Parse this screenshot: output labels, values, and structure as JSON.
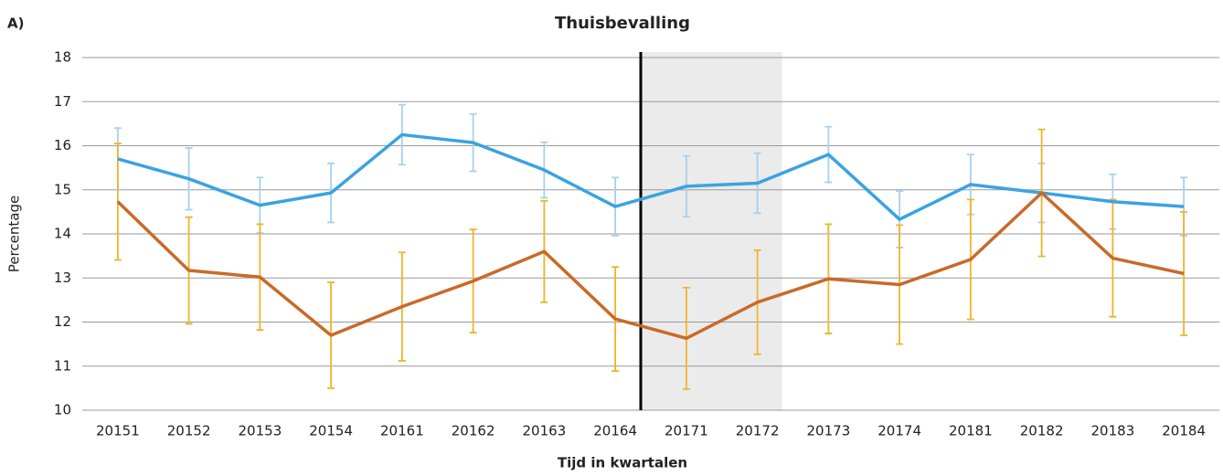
{
  "chart_data": {
    "type": "line",
    "panel_label": "A)",
    "title": "Thuisbevalling",
    "x_label": "Tijd in kwartalen",
    "y_label": "Percentage",
    "categories": [
      "20151",
      "20152",
      "20153",
      "20154",
      "20161",
      "20162",
      "20163",
      "20164",
      "20171",
      "20172",
      "20173",
      "20174",
      "20181",
      "20182",
      "20183",
      "20184"
    ],
    "ylim": [
      10,
      18
    ],
    "yticks": [
      10,
      11,
      12,
      13,
      14,
      15,
      16,
      17,
      18
    ],
    "grid": true,
    "series": [
      {
        "color": "#3aa3e0",
        "error_color": "#a9d0ee",
        "values": [
          15.7,
          15.25,
          14.65,
          14.93,
          16.25,
          16.07,
          15.45,
          14.62,
          15.08,
          15.15,
          15.8,
          14.33,
          15.12,
          14.93,
          14.73,
          14.62
        ],
        "errors": [
          0.7,
          0.7,
          0.63,
          0.67,
          0.68,
          0.65,
          0.63,
          0.66,
          0.69,
          0.68,
          0.63,
          0.64,
          0.68,
          0.67,
          0.62,
          0.66
        ]
      },
      {
        "color": "#c96a28",
        "error_color": "#f0b429",
        "values": [
          14.73,
          13.17,
          13.02,
          11.7,
          12.35,
          12.93,
          13.6,
          12.07,
          11.63,
          12.45,
          12.98,
          12.85,
          13.42,
          14.93,
          13.45,
          13.1
        ],
        "errors": [
          1.32,
          1.21,
          1.2,
          1.2,
          1.23,
          1.17,
          1.15,
          1.18,
          1.15,
          1.18,
          1.24,
          1.35,
          1.36,
          1.44,
          1.33,
          1.4
        ]
      }
    ]
  }
}
